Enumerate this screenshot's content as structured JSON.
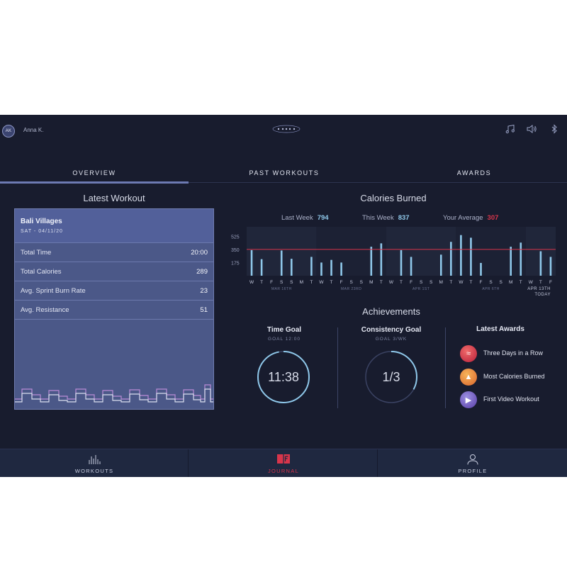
{
  "user": {
    "initials": "AK",
    "name": "Anna K."
  },
  "header_icons": [
    "music-note-icon",
    "speaker-icon",
    "bluetooth-icon"
  ],
  "tabs": [
    {
      "label": "OVERVIEW",
      "active": true
    },
    {
      "label": "PAST WORKOUTS",
      "active": false
    },
    {
      "label": "AWARDS",
      "active": false
    }
  ],
  "latest_workout": {
    "title": "Latest Workout",
    "name": "Bali Villages",
    "date": "SAT - 04/11/20",
    "stats": [
      {
        "label": "Total Time",
        "value": "20:00"
      },
      {
        "label": "Total Calories",
        "value": "289"
      },
      {
        "label": "Avg. Sprint Burn Rate",
        "value": "23"
      },
      {
        "label": "Avg. Resistance",
        "value": "51"
      }
    ]
  },
  "calories": {
    "title": "Calories Burned",
    "last_week_label": "Last Week",
    "last_week_value": "794",
    "this_week_label": "This Week",
    "this_week_value": "837",
    "average_label": "Your Average",
    "average_value": "307"
  },
  "chart_data": {
    "type": "bar",
    "categories": [
      "W",
      "T",
      "F",
      "S",
      "S",
      "M",
      "T",
      "W",
      "T",
      "F",
      "S",
      "S",
      "M",
      "T",
      "W",
      "T",
      "F",
      "S",
      "S",
      "M",
      "T",
      "W",
      "T",
      "F",
      "S",
      "S",
      "M",
      "T",
      "W",
      "T",
      "F"
    ],
    "values": [
      340,
      220,
      0,
      335,
      225,
      0,
      250,
      175,
      210,
      175,
      0,
      0,
      385,
      430,
      0,
      340,
      250,
      0,
      0,
      280,
      450,
      540,
      505,
      170,
      0,
      0,
      385,
      440,
      0,
      325,
      250
    ],
    "yticks": [
      "525",
      "350",
      "175"
    ],
    "ylim": [
      0,
      650
    ],
    "average_line": 350,
    "week_labels": [
      "MAR 16TH",
      "MAR 23RD",
      "APR 1ST",
      "APR 6TH"
    ],
    "end_label": "APR 13TH",
    "end_sublabel": "TODAY",
    "colors": {
      "bar": "#8fc8ea",
      "average": "#d8354b",
      "shade": "#20263a"
    }
  },
  "achievements": {
    "title": "Achievements",
    "time_goal": {
      "title": "Time Goal",
      "sub": "GOAL 12:00",
      "value": "11:38",
      "progress": 0.97
    },
    "consistency_goal": {
      "title": "Consistency Goal",
      "sub": "GOAL 3/WK",
      "value": "1/3",
      "progress": 0.33
    },
    "awards_title": "Latest Awards",
    "awards": [
      {
        "label": "Three Days in a Row",
        "icon": "streak-award-icon",
        "color": "#d8354b"
      },
      {
        "label": "Most Calories Burned",
        "icon": "flame-award-icon",
        "color": "#e88a3a"
      },
      {
        "label": "First Video Workout",
        "icon": "video-award-icon",
        "color": "#7a5cc4"
      }
    ]
  },
  "bottom_nav": [
    {
      "label": "WORKOUTS",
      "icon": "bars-icon",
      "active": false
    },
    {
      "label": "JOURNAL",
      "icon": "journal-icon",
      "active": true
    },
    {
      "label": "PROFILE",
      "icon": "profile-icon",
      "active": false
    }
  ]
}
